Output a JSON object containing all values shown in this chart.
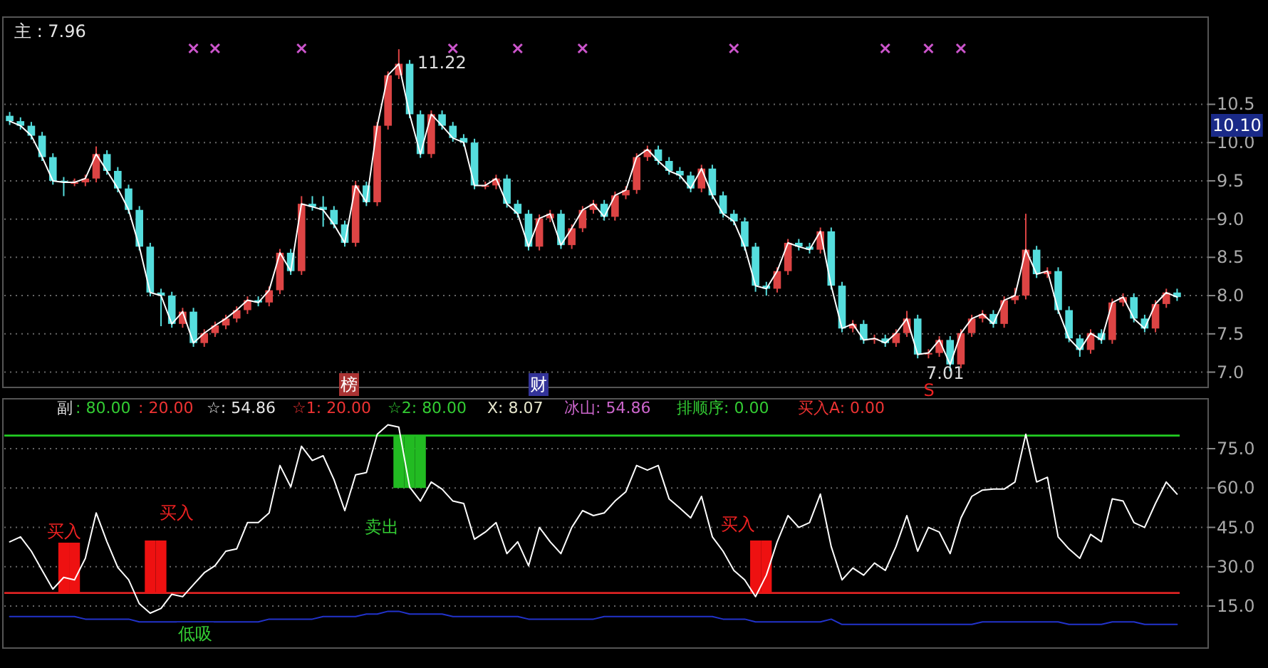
{
  "chart_data": [
    {
      "type": "candlestick",
      "categories": [
        null,
        null,
        null,
        null,
        null,
        null,
        null,
        null,
        null,
        null,
        null,
        null,
        null,
        null,
        null,
        null,
        null,
        null,
        null,
        null,
        null,
        null,
        null,
        null,
        null,
        null,
        null,
        null,
        null,
        null,
        null,
        null,
        null,
        null,
        null,
        null,
        null,
        null,
        null,
        null,
        null,
        null,
        null,
        null,
        null,
        null,
        null,
        null,
        null,
        null,
        null,
        null,
        null,
        null,
        null,
        null,
        null,
        null,
        null,
        null,
        null,
        null,
        null,
        null,
        null,
        null,
        null,
        null,
        null,
        null,
        null,
        null,
        null,
        null,
        null,
        null,
        null,
        null,
        null,
        null,
        null,
        null,
        null,
        null,
        null,
        null,
        null,
        null,
        null,
        null,
        null,
        null,
        null,
        null,
        null,
        null,
        null,
        null,
        null,
        null,
        null,
        null,
        null,
        null,
        null,
        null,
        null,
        null,
        null
      ],
      "ohlc": [
        [
          10.35,
          10.4,
          10.23,
          10.28
        ],
        [
          10.28,
          10.33,
          10.17,
          10.22
        ],
        [
          10.22,
          10.27,
          10.04,
          10.09
        ],
        [
          10.09,
          10.14,
          9.76,
          9.81
        ],
        [
          9.81,
          9.86,
          9.45,
          9.5
        ],
        [
          9.5,
          9.55,
          9.3,
          9.48
        ],
        [
          9.48,
          9.53,
          9.43,
          9.48
        ],
        [
          9.48,
          9.58,
          9.43,
          9.53
        ],
        [
          9.53,
          9.95,
          9.48,
          9.85
        ],
        [
          9.85,
          9.9,
          9.58,
          9.63
        ],
        [
          9.63,
          9.68,
          9.35,
          9.4
        ],
        [
          9.4,
          9.45,
          9.07,
          9.12
        ],
        [
          9.12,
          9.17,
          8.59,
          8.64
        ],
        [
          8.64,
          8.69,
          7.99,
          8.04
        ],
        [
          8.04,
          8.09,
          7.6,
          8.0
        ],
        [
          8.0,
          8.05,
          7.58,
          7.63
        ],
        [
          7.63,
          7.84,
          7.58,
          7.79
        ],
        [
          7.79,
          7.84,
          7.33,
          7.38
        ],
        [
          7.38,
          7.56,
          7.33,
          7.51
        ],
        [
          7.51,
          7.66,
          7.46,
          7.61
        ],
        [
          7.61,
          7.75,
          7.56,
          7.7
        ],
        [
          7.7,
          7.86,
          7.65,
          7.81
        ],
        [
          7.81,
          7.99,
          7.76,
          7.94
        ],
        [
          7.94,
          7.99,
          7.86,
          7.91
        ],
        [
          7.91,
          8.12,
          7.86,
          8.07
        ],
        [
          8.07,
          8.61,
          8.02,
          8.56
        ],
        [
          8.56,
          8.61,
          8.27,
          8.32
        ],
        [
          8.32,
          9.3,
          8.27,
          9.2
        ],
        [
          9.2,
          9.3,
          9.11,
          9.16
        ],
        [
          9.16,
          9.3,
          8.9,
          9.12
        ],
        [
          9.12,
          9.17,
          8.88,
          8.93
        ],
        [
          8.93,
          8.98,
          8.64,
          8.69
        ],
        [
          8.69,
          9.5,
          8.64,
          9.44
        ],
        [
          9.44,
          9.49,
          9.17,
          9.22
        ],
        [
          9.22,
          10.27,
          9.17,
          10.22
        ],
        [
          10.22,
          10.93,
          10.17,
          10.88
        ],
        [
          10.88,
          11.22,
          10.83,
          11.03
        ],
        [
          11.03,
          11.08,
          10.32,
          10.37
        ],
        [
          10.37,
          10.42,
          9.8,
          9.85
        ],
        [
          9.85,
          10.42,
          9.8,
          10.37
        ],
        [
          10.37,
          10.42,
          10.17,
          10.22
        ],
        [
          10.22,
          10.27,
          10.01,
          10.06
        ],
        [
          10.06,
          10.11,
          9.95,
          10.0
        ],
        [
          10.0,
          10.05,
          9.39,
          9.44
        ],
        [
          9.44,
          9.49,
          9.39,
          9.44
        ],
        [
          9.44,
          9.58,
          9.39,
          9.53
        ],
        [
          9.53,
          9.58,
          9.15,
          9.2
        ],
        [
          9.2,
          9.25,
          9.02,
          9.07
        ],
        [
          9.07,
          9.12,
          8.59,
          8.64
        ],
        [
          8.64,
          9.06,
          8.59,
          9.01
        ],
        [
          9.01,
          9.12,
          8.96,
          9.07
        ],
        [
          9.07,
          9.12,
          8.61,
          8.66
        ],
        [
          8.66,
          8.93,
          8.61,
          8.88
        ],
        [
          8.88,
          9.17,
          8.83,
          9.12
        ],
        [
          9.12,
          9.25,
          9.07,
          9.2
        ],
        [
          9.2,
          9.25,
          8.98,
          9.03
        ],
        [
          9.03,
          9.36,
          8.98,
          9.31
        ],
        [
          9.31,
          9.43,
          9.26,
          9.38
        ],
        [
          9.38,
          9.86,
          9.33,
          9.81
        ],
        [
          9.81,
          9.96,
          9.76,
          9.91
        ],
        [
          9.91,
          9.96,
          9.71,
          9.76
        ],
        [
          9.76,
          9.81,
          9.58,
          9.63
        ],
        [
          9.63,
          9.68,
          9.52,
          9.57
        ],
        [
          9.57,
          9.62,
          9.35,
          9.4
        ],
        [
          9.4,
          9.71,
          9.35,
          9.66
        ],
        [
          9.66,
          9.71,
          9.26,
          9.31
        ],
        [
          9.31,
          9.36,
          9.02,
          9.07
        ],
        [
          9.07,
          9.12,
          8.92,
          8.97
        ],
        [
          8.97,
          9.02,
          8.59,
          8.64
        ],
        [
          8.64,
          8.69,
          8.05,
          8.13
        ],
        [
          8.13,
          8.18,
          8.0,
          8.09
        ],
        [
          8.09,
          8.37,
          8.04,
          8.32
        ],
        [
          8.32,
          8.74,
          8.27,
          8.69
        ],
        [
          8.69,
          8.74,
          8.59,
          8.64
        ],
        [
          8.64,
          8.69,
          8.55,
          8.6
        ],
        [
          8.6,
          8.89,
          8.55,
          8.84
        ],
        [
          8.84,
          8.89,
          8.08,
          8.13
        ],
        [
          8.13,
          8.18,
          7.52,
          7.57
        ],
        [
          7.57,
          7.68,
          7.52,
          7.63
        ],
        [
          7.63,
          7.68,
          7.37,
          7.42
        ],
        [
          7.42,
          7.49,
          7.37,
          7.44
        ],
        [
          7.44,
          7.49,
          7.33,
          7.38
        ],
        [
          7.38,
          7.56,
          7.33,
          7.51
        ],
        [
          7.51,
          7.8,
          7.46,
          7.7
        ],
        [
          7.7,
          7.75,
          7.18,
          7.23
        ],
        [
          7.23,
          7.3,
          7.18,
          7.25
        ],
        [
          7.25,
          7.47,
          7.2,
          7.42
        ],
        [
          7.42,
          7.47,
          7.01,
          7.1
        ],
        [
          7.1,
          7.56,
          7.05,
          7.51
        ],
        [
          7.51,
          7.75,
          7.46,
          7.7
        ],
        [
          7.7,
          7.81,
          7.65,
          7.76
        ],
        [
          7.76,
          7.81,
          7.58,
          7.63
        ],
        [
          7.63,
          7.99,
          7.58,
          7.94
        ],
        [
          7.94,
          8.1,
          7.89,
          8.0
        ],
        [
          8.0,
          9.07,
          7.95,
          8.6
        ],
        [
          8.6,
          8.65,
          8.23,
          8.28
        ],
        [
          8.28,
          8.37,
          8.23,
          8.32
        ],
        [
          8.32,
          8.37,
          7.76,
          7.81
        ],
        [
          7.81,
          7.86,
          7.39,
          7.44
        ],
        [
          7.44,
          7.49,
          7.2,
          7.29
        ],
        [
          7.29,
          7.56,
          7.24,
          7.51
        ],
        [
          7.51,
          7.56,
          7.37,
          7.42
        ],
        [
          7.42,
          7.96,
          7.37,
          7.91
        ],
        [
          7.91,
          8.03,
          7.86,
          7.98
        ],
        [
          7.98,
          8.03,
          7.65,
          7.7
        ],
        [
          7.7,
          7.75,
          7.52,
          7.57
        ],
        [
          7.57,
          7.94,
          7.52,
          7.89
        ],
        [
          7.89,
          8.09,
          7.84,
          8.04
        ],
        [
          8.04,
          8.09,
          7.93,
          7.98
        ]
      ],
      "series": [
        {
          "type": "line",
          "color": "#ffffff",
          "values": [
            10.28,
            10.22,
            10.09,
            9.81,
            9.5,
            9.48,
            9.48,
            9.53,
            9.85,
            9.63,
            9.4,
            9.12,
            8.64,
            8.04,
            8.0,
            7.63,
            7.79,
            7.38,
            7.51,
            7.61,
            7.7,
            7.81,
            7.94,
            7.91,
            8.07,
            8.56,
            8.32,
            9.2,
            9.16,
            9.12,
            8.93,
            8.69,
            9.44,
            9.22,
            10.22,
            10.88,
            11.03,
            10.37,
            9.85,
            10.37,
            10.22,
            10.06,
            10.0,
            9.44,
            9.44,
            9.53,
            9.2,
            9.07,
            8.64,
            9.01,
            9.07,
            8.66,
            8.88,
            9.12,
            9.2,
            9.03,
            9.31,
            9.38,
            9.81,
            9.91,
            9.76,
            9.63,
            9.57,
            9.4,
            9.66,
            9.31,
            9.07,
            8.97,
            8.64,
            8.13,
            8.09,
            8.32,
            8.69,
            8.64,
            8.6,
            8.84,
            8.13,
            7.57,
            7.63,
            7.42,
            7.44,
            7.38,
            7.51,
            7.7,
            7.23,
            7.25,
            7.42,
            7.1,
            7.51,
            7.7,
            7.76,
            7.63,
            7.94,
            8.0,
            8.6,
            8.28,
            8.32,
            7.81,
            7.44,
            7.29,
            7.51,
            7.42,
            7.91,
            7.98,
            7.7,
            7.57,
            7.89,
            8.04,
            7.98
          ]
        },
        {
          "type": "scatter",
          "marker": "cross",
          "color": "#cc55cc",
          "values": [
            null,
            null,
            null,
            null,
            null,
            null,
            null,
            null,
            null,
            null,
            null,
            null,
            null,
            null,
            null,
            null,
            null,
            11.23,
            null,
            11.23,
            null,
            null,
            null,
            null,
            null,
            null,
            null,
            11.23,
            null,
            null,
            null,
            null,
            null,
            null,
            null,
            null,
            null,
            null,
            null,
            null,
            null,
            11.23,
            null,
            null,
            null,
            null,
            null,
            11.23,
            null,
            null,
            null,
            null,
            null,
            11.23,
            null,
            null,
            null,
            null,
            null,
            null,
            null,
            null,
            null,
            null,
            null,
            null,
            null,
            11.23,
            null,
            null,
            null,
            null,
            null,
            null,
            null,
            null,
            null,
            null,
            null,
            null,
            null,
            11.23,
            null,
            null,
            null,
            11.23,
            null,
            null,
            11.23,
            null,
            null,
            null,
            null,
            null,
            null,
            null,
            null,
            null,
            null,
            null,
            null,
            null,
            null,
            null,
            null,
            null,
            null,
            null,
            null
          ]
        }
      ],
      "ylim": [
        6.8,
        11.64
      ],
      "yticks": [
        {
          "value": 7,
          "label": "7.0"
        },
        {
          "value": 7.5,
          "label": "7.5"
        },
        {
          "value": 8,
          "label": "8.0"
        },
        {
          "value": 8.5,
          "label": "8.5"
        },
        {
          "value": 9,
          "label": "9.0"
        },
        {
          "value": 9.5,
          "label": "9.5"
        },
        {
          "value": 10,
          "label": "10.0"
        },
        {
          "value": 10.5,
          "label": "10.5"
        }
      ],
      "grid": "y",
      "annotations": [
        "主 : 7.96",
        "11.22",
        "7.01",
        "10.10",
        "榜",
        "财",
        "S"
      ]
    },
    {
      "type": "line",
      "categories": [
        null,
        null,
        null,
        null,
        null,
        null,
        null,
        null,
        null,
        null,
        null,
        null,
        null,
        null,
        null,
        null,
        null,
        null,
        null,
        null,
        null,
        null,
        null,
        null,
        null,
        null,
        null,
        null,
        null,
        null,
        null,
        null,
        null,
        null,
        null,
        null,
        null,
        null,
        null,
        null,
        null,
        null,
        null,
        null,
        null,
        null,
        null,
        null,
        null,
        null,
        null,
        null,
        null,
        null,
        null,
        null,
        null,
        null,
        null,
        null,
        null,
        null,
        null,
        null,
        null,
        null,
        null,
        null,
        null,
        null,
        null,
        null,
        null,
        null,
        null,
        null,
        null,
        null,
        null,
        null,
        null,
        null,
        null,
        null,
        null,
        null,
        null,
        null,
        null,
        null,
        null,
        null,
        null,
        null,
        null,
        null,
        null,
        null,
        null,
        null,
        null,
        null,
        null,
        null,
        null,
        null,
        null,
        null,
        null
      ],
      "series": [
        {
          "type": "bar",
          "color": "#ee1111",
          "values": [
            null,
            null,
            null,
            null,
            null,
            20,
            20,
            null,
            null,
            null,
            null,
            null,
            null,
            20,
            20,
            null,
            null,
            null,
            null,
            null,
            null,
            null,
            null,
            null,
            null,
            null,
            null,
            null,
            null,
            null,
            null,
            null,
            null,
            null,
            null,
            null,
            null,
            null,
            null,
            null,
            null,
            null,
            null,
            null,
            null,
            null,
            null,
            null,
            null,
            null,
            null,
            null,
            null,
            null,
            null,
            null,
            null,
            null,
            null,
            null,
            null,
            null,
            null,
            null,
            null,
            null,
            null,
            null,
            null,
            20,
            20,
            null,
            null,
            null,
            null,
            null,
            null,
            null,
            null,
            null,
            null,
            null,
            null,
            null,
            null,
            null,
            null,
            null,
            null,
            null,
            null,
            null,
            null,
            null,
            null,
            null,
            null,
            null,
            null,
            null,
            null,
            null,
            null,
            null,
            null,
            null,
            null,
            null,
            null
          ],
          "base": [
            null,
            null,
            null,
            null,
            null,
            20,
            20,
            null,
            null,
            null,
            null,
            null,
            null,
            20,
            20,
            null,
            null,
            null,
            null,
            null,
            null,
            null,
            null,
            null,
            null,
            null,
            null,
            null,
            null,
            null,
            null,
            null,
            null,
            null,
            null,
            null,
            null,
            null,
            null,
            null,
            null,
            null,
            null,
            null,
            null,
            null,
            null,
            null,
            null,
            null,
            null,
            null,
            null,
            null,
            null,
            null,
            null,
            null,
            null,
            null,
            null,
            null,
            null,
            null,
            null,
            null,
            null,
            null,
            null,
            20,
            20,
            null,
            null,
            null,
            null,
            null,
            null,
            null,
            null,
            null,
            null,
            null,
            null,
            null,
            null,
            null,
            null,
            null,
            null,
            null,
            null,
            null,
            null,
            null,
            null,
            null,
            null,
            null,
            null,
            null,
            null,
            null,
            null,
            null,
            null,
            null,
            null,
            null,
            null
          ]
        },
        {
          "type": "bar",
          "color": "#22bb22",
          "values": [
            null,
            null,
            null,
            null,
            null,
            null,
            null,
            null,
            null,
            null,
            null,
            null,
            null,
            null,
            null,
            null,
            null,
            null,
            null,
            null,
            null,
            null,
            null,
            null,
            null,
            null,
            null,
            null,
            null,
            null,
            null,
            null,
            null,
            null,
            null,
            null,
            20,
            20,
            20,
            null,
            null,
            null,
            null,
            null,
            null,
            null,
            null,
            null,
            null,
            null,
            null,
            null,
            null,
            null,
            null,
            null,
            null,
            null,
            null,
            null,
            null,
            null,
            null,
            null,
            null,
            null,
            null,
            null,
            null,
            null,
            null,
            null,
            null,
            null,
            null,
            null,
            null,
            null,
            null,
            null,
            null,
            null,
            null,
            null,
            null,
            null,
            null,
            null,
            null,
            null,
            null,
            null,
            null,
            null,
            null,
            null,
            null,
            null,
            null,
            null,
            null,
            null,
            null,
            null,
            null,
            null,
            null,
            null,
            null
          ],
          "base": [
            null,
            null,
            null,
            null,
            null,
            null,
            null,
            null,
            null,
            null,
            null,
            null,
            null,
            null,
            null,
            null,
            null,
            null,
            null,
            null,
            null,
            null,
            null,
            null,
            null,
            null,
            null,
            null,
            null,
            null,
            null,
            null,
            null,
            null,
            null,
            null,
            60,
            60,
            60,
            null,
            null,
            null,
            null,
            null,
            null,
            null,
            null,
            null,
            null,
            null,
            null,
            null,
            null,
            null,
            null,
            null,
            null,
            null,
            null,
            null,
            null,
            null,
            null,
            null,
            null,
            null,
            null,
            null,
            null,
            null,
            null,
            null,
            null,
            null,
            null,
            null,
            null,
            null,
            null,
            null,
            null,
            null,
            null,
            null,
            null,
            null,
            null,
            null,
            null,
            null,
            null,
            null,
            null,
            null,
            null,
            null,
            null,
            null,
            null,
            null,
            null,
            null,
            null,
            null,
            null,
            null,
            null,
            null,
            null
          ]
        },
        {
          "type": "line",
          "color": "#ffffff",
          "values": [
            39.5,
            41.4,
            35.9,
            28.6,
            21.5,
            25.9,
            25,
            33.2,
            50.5,
            39.5,
            29.7,
            25,
            15.9,
            12.3,
            14.1,
            19.5,
            18.6,
            23.2,
            27.7,
            30.4,
            35.9,
            36.8,
            46.8,
            46.8,
            50.5,
            68.6,
            60.4,
            75.9,
            70.5,
            72.3,
            63.2,
            51.4,
            65,
            65.9,
            80.5,
            84.1,
            83.2,
            60.4,
            55,
            62.3,
            59.6,
            55,
            54.1,
            40.5,
            43.2,
            46.8,
            35,
            39.5,
            30.4,
            45,
            39.5,
            35,
            45,
            51.4,
            49.5,
            50.5,
            55,
            58.6,
            68.6,
            66.8,
            68.6,
            55.9,
            52.3,
            48.6,
            56.8,
            41.4,
            35.9,
            28.6,
            25,
            18.6,
            26.8,
            39.5,
            49.5,
            45,
            46.8,
            57.7,
            37.7,
            25,
            29.5,
            26.8,
            31.4,
            28.6,
            37.7,
            49.5,
            35.9,
            45,
            43.2,
            35,
            48.6,
            56.8,
            59.2,
            59.6,
            59.6,
            62.3,
            80.5,
            62.3,
            64.1,
            41.4,
            36.8,
            33.2,
            42.3,
            39.5,
            55.9,
            55,
            46.8,
            45,
            54.1,
            62.3,
            57.7
          ]
        },
        {
          "type": "line",
          "color": "#2233cc",
          "values": [
            11,
            11,
            11,
            11,
            11,
            11,
            11,
            10,
            10,
            10,
            10,
            10,
            9,
            9,
            9,
            9,
            9,
            9,
            9,
            9,
            9,
            9,
            9,
            9,
            10,
            10,
            10,
            10,
            10,
            11,
            11,
            11,
            11,
            12,
            12,
            13,
            13,
            12,
            12,
            12,
            12,
            11,
            11,
            11,
            11,
            11,
            11,
            11,
            10,
            10,
            10,
            10,
            10,
            10,
            10,
            11,
            11,
            11,
            11,
            11,
            11,
            11,
            11,
            11,
            11,
            11,
            10,
            10,
            10,
            9,
            9,
            9,
            9,
            9,
            9,
            9,
            10,
            8,
            8,
            8,
            8,
            8,
            8,
            8,
            8,
            8,
            8,
            8,
            8,
            8,
            9,
            9,
            9,
            9,
            9,
            9,
            9,
            9,
            8,
            8,
            8,
            8,
            9,
            9,
            9,
            8,
            8,
            8,
            8
          ]
        }
      ],
      "ref_lines": [
        {
          "axis": "y",
          "value": 80,
          "color": "#22cc22"
        },
        {
          "axis": "y",
          "value": 20,
          "color": "#dd2222"
        }
      ],
      "ylim": [
        -1,
        94
      ],
      "yticks": [
        {
          "value": 15,
          "label": "15.0"
        },
        {
          "value": 30,
          "label": "30.0"
        },
        {
          "value": 45,
          "label": "45.0"
        },
        {
          "value": 60,
          "label": "60.0"
        },
        {
          "value": 75,
          "label": "75.0"
        }
      ],
      "grid": "y",
      "annotations": [
        "副",
        ": 80.00",
        ": 20.00",
        "☆: 54.86",
        "☆1: 20.00",
        "☆2: 80.00",
        "X: 8.07",
        "冰山: 54.86",
        "排顺序: 0.00",
        "买入A: 0.00",
        "买入",
        "买入",
        "买入",
        "卖出",
        "低吸"
      ]
    }
  ]
}
